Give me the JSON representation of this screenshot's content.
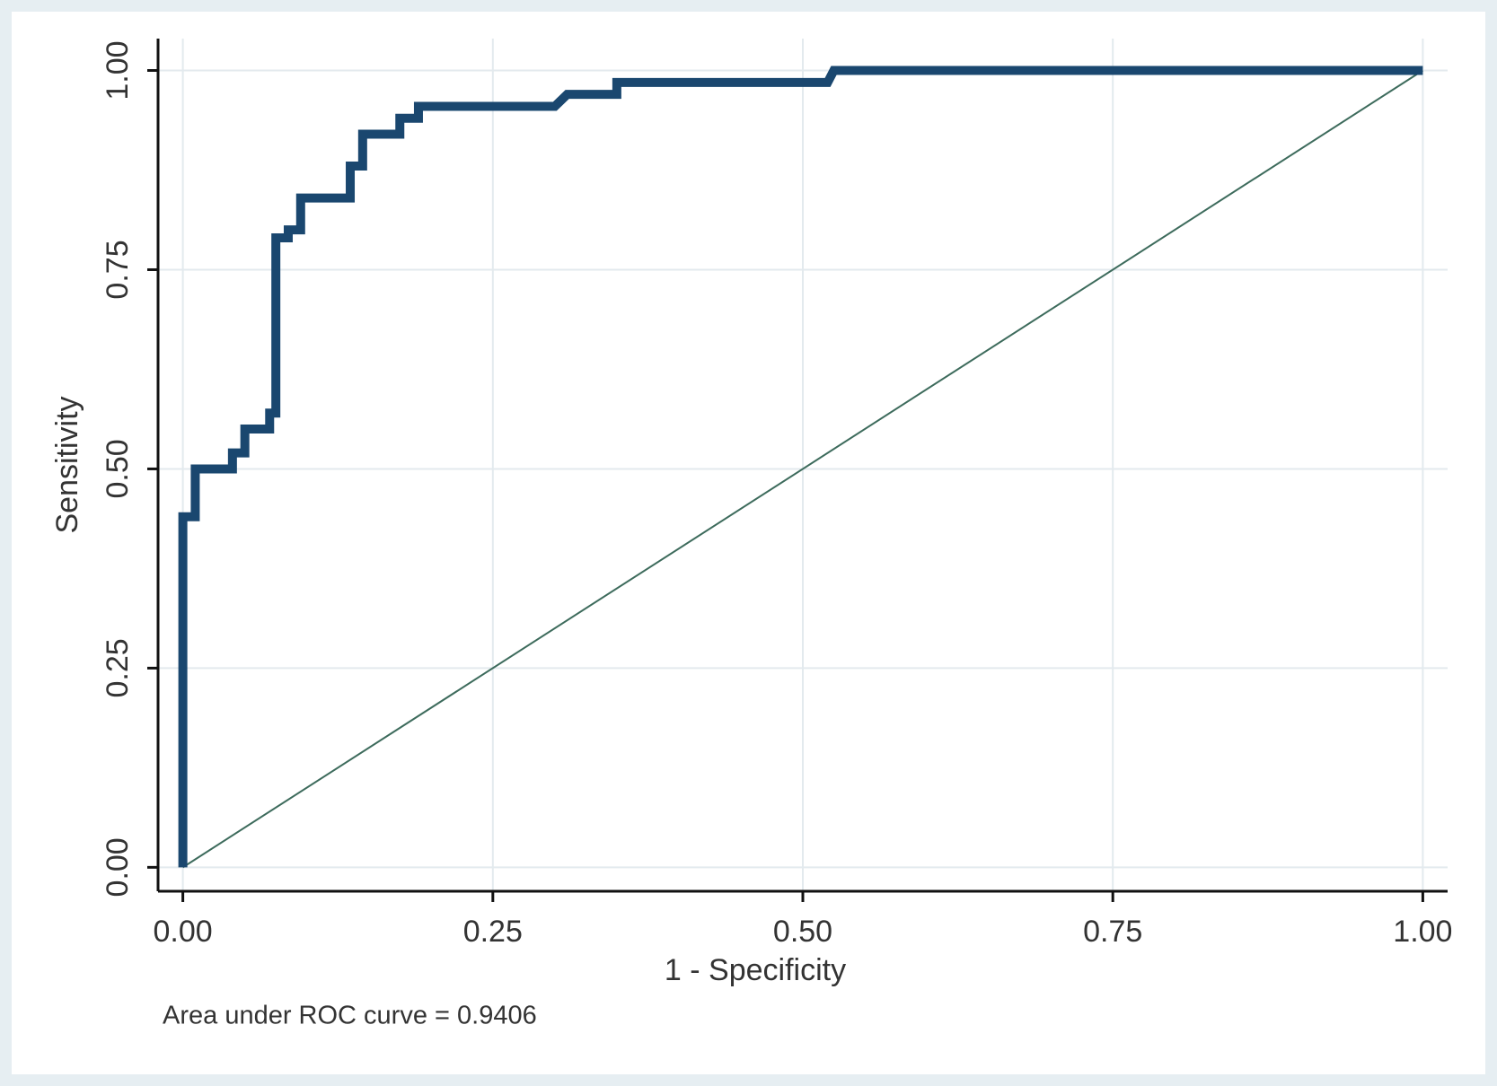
{
  "chart_data": {
    "type": "line",
    "x_label": "1 - Specificity",
    "y_label": "Sensitivity",
    "annotation": "Area under ROC curve = 0.9406",
    "x": [
      0,
      0,
      0.01,
      0.01,
      0.04,
      0.04,
      0.05,
      0.05,
      0.07,
      0.07,
      0.075,
      0.075,
      0.085,
      0.085,
      0.095,
      0.095,
      0.135,
      0.135,
      0.145,
      0.145,
      0.175,
      0.175,
      0.19,
      0.19,
      0.3,
      0.31,
      0.35,
      0.35,
      0.52,
      0.525,
      1
    ],
    "values": [
      0,
      0.44,
      0.44,
      0.5,
      0.5,
      0.52,
      0.52,
      0.55,
      0.55,
      0.57,
      0.57,
      0.79,
      0.79,
      0.8,
      0.8,
      0.84,
      0.84,
      0.88,
      0.88,
      0.92,
      0.92,
      0.94,
      0.94,
      0.955,
      0.955,
      0.97,
      0.97,
      0.985,
      0.985,
      1,
      1
    ],
    "color": "#1a476f",
    "reference_line": {
      "x": [
        0,
        1
      ],
      "values": [
        0,
        1
      ],
      "color": "#3d6b5c"
    },
    "xlim": [
      -0.02,
      1.02
    ],
    "ylim": [
      -0.03,
      1.04
    ],
    "xticks": [
      {
        "value": 0,
        "label": "0.00"
      },
      {
        "value": 0.25,
        "label": "0.25"
      },
      {
        "value": 0.5,
        "label": "0.50"
      },
      {
        "value": 0.75,
        "label": "0.75"
      },
      {
        "value": 1,
        "label": "1.00"
      }
    ],
    "yticks": [
      {
        "value": 0,
        "label": "0.00"
      },
      {
        "value": 0.25,
        "label": "0.25"
      },
      {
        "value": 0.5,
        "label": "0.50"
      },
      {
        "value": 0.75,
        "label": "0.75"
      },
      {
        "value": 1,
        "label": "1.00"
      }
    ],
    "grid": true
  }
}
